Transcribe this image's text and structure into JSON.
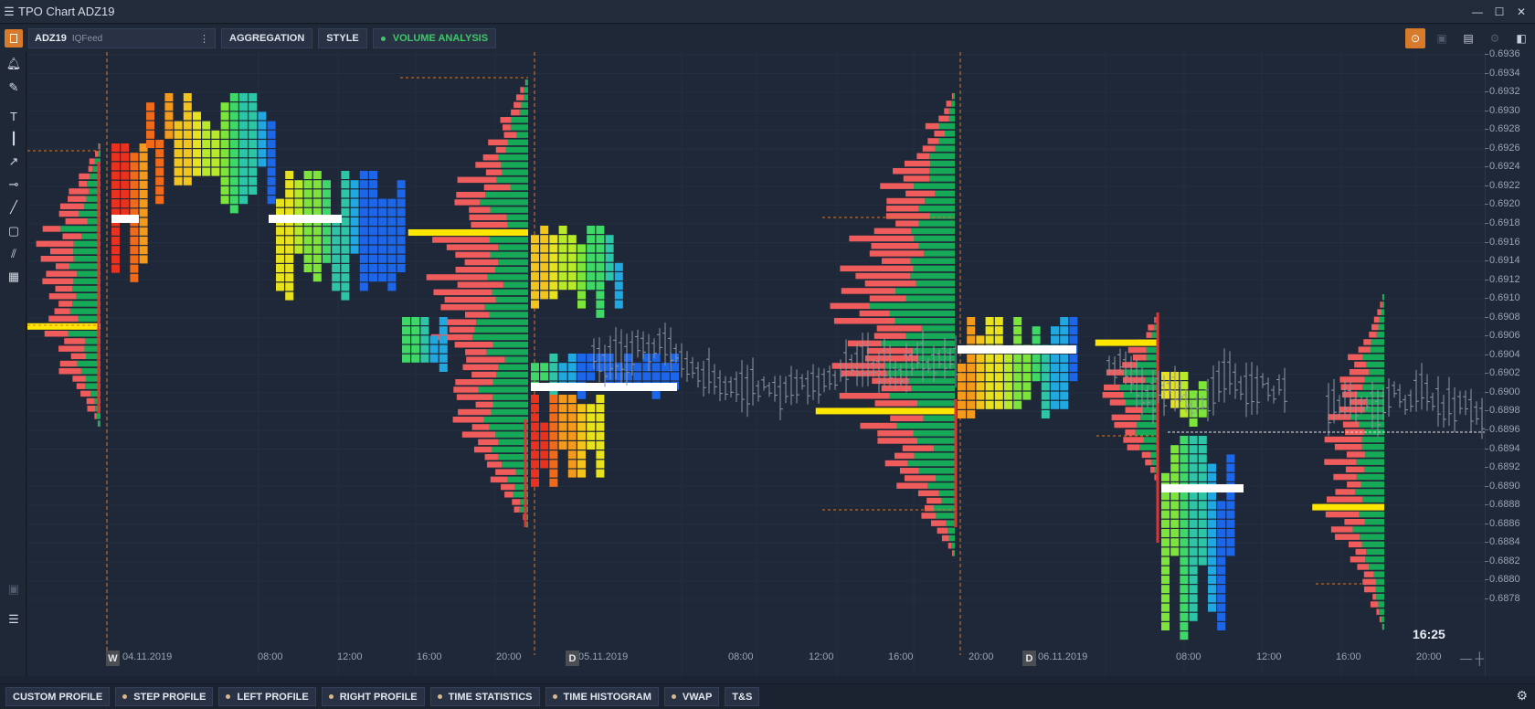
{
  "window": {
    "title": "TPO Chart ADZ19"
  },
  "toolbar": {
    "symbol": "ADZ19",
    "feed": "IQFeed",
    "aggregation_label": "AGGREGATION",
    "style_label": "STYLE",
    "volume_analysis_label": "VOLUME ANALYSIS"
  },
  "chart": {
    "price_ticks": [
      "0.6936",
      "0.6934",
      "0.6932",
      "0.6930",
      "0.6928",
      "0.6926",
      "0.6924",
      "0.6922",
      "0.6920",
      "0.6918",
      "0.6916",
      "0.6914",
      "0.6912",
      "0.6910",
      "0.6908",
      "0.6906",
      "0.6904",
      "0.6902",
      "0.6900",
      "0.6898",
      "0.6896",
      "0.6894",
      "0.6892",
      "0.6890",
      "0.6888",
      "0.6886",
      "0.6884",
      "0.6882",
      "0.6880",
      "0.6878"
    ],
    "time_ticks": [
      "04.11.2019",
      "08:00",
      "12:00",
      "16:00",
      "20:00",
      "05.11.2019",
      "08:00",
      "12:00",
      "16:00",
      "20:00",
      "06.11.2019",
      "08:00",
      "12:00",
      "16:00",
      "20:00"
    ],
    "session_markers": [
      "W",
      "D",
      "D"
    ],
    "countdown": "16:25",
    "colors": {
      "profile_buy": "#16a957",
      "profile_sell": "#f05b5b",
      "poc": "#ffe600",
      "background": "#1e2838"
    }
  },
  "bottom_tabs": [
    {
      "label": "CUSTOM PROFILE",
      "dot": false
    },
    {
      "label": "STEP PROFILE",
      "dot": true
    },
    {
      "label": "LEFT PROFILE",
      "dot": true
    },
    {
      "label": "RIGHT PROFILE",
      "dot": true
    },
    {
      "label": "TIME STATISTICS",
      "dot": true
    },
    {
      "label": "TIME HISTOGRAM",
      "dot": true
    },
    {
      "label": "VWAP",
      "dot": true
    },
    {
      "label": "T&S",
      "dot": false
    }
  ]
}
